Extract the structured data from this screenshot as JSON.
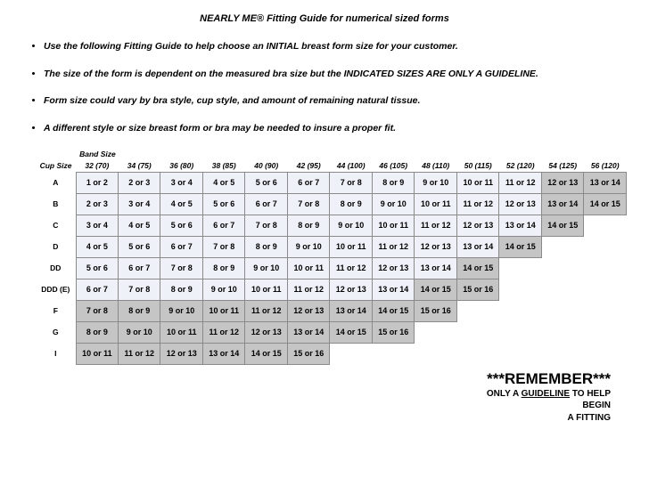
{
  "title": "NEARLY ME®  Fitting Guide for numerical sized forms",
  "notes": [
    "Use the following Fitting Guide to help choose an INITIAL breast form size for your customer.",
    "The size of the form is dependent on the measured bra size but the INDICATED SIZES ARE ONLY A GUIDELINE.",
    "Form size could vary by bra style, cup style, and amount of remaining natural tissue.",
    "A different style or size breast form or bra may be needed to insure a proper fit."
  ],
  "table": {
    "band_size_label": "Band Size",
    "cup_size_label": "Cup Size",
    "band_headers": [
      "32 (70)",
      "34 (75)",
      "36 (80)",
      "38 (85)",
      "40 (90)",
      "42 (95)",
      "44 (100)",
      "46 (105)",
      "48 (110)",
      "50 (115)",
      "52 (120)",
      "54 (125)",
      "56 (120)"
    ],
    "cup_labels": [
      "A",
      "B",
      "C",
      "D",
      "DD",
      "DDD (E)",
      "F",
      "G",
      "I"
    ],
    "cells": {
      "A": [
        {
          "v": "1 or 2",
          "s": "light"
        },
        {
          "v": "2 or 3",
          "s": "light"
        },
        {
          "v": "3 or 4",
          "s": "light"
        },
        {
          "v": "4 or 5",
          "s": "light"
        },
        {
          "v": "5 or 6",
          "s": "light"
        },
        {
          "v": "6 or 7",
          "s": "light"
        },
        {
          "v": "7 or 8",
          "s": "light"
        },
        {
          "v": "8 or 9",
          "s": "light"
        },
        {
          "v": "9 or 10",
          "s": "light"
        },
        {
          "v": "10 or 11",
          "s": "light"
        },
        {
          "v": "11 or 12",
          "s": "light"
        },
        {
          "v": "12 or 13",
          "s": "dark"
        },
        {
          "v": "13 or 14",
          "s": "dark"
        }
      ],
      "B": [
        {
          "v": "2 or 3",
          "s": "light"
        },
        {
          "v": "3 or 4",
          "s": "light"
        },
        {
          "v": "4 or 5",
          "s": "light"
        },
        {
          "v": "5 or 6",
          "s": "light"
        },
        {
          "v": "6 or 7",
          "s": "light"
        },
        {
          "v": "7 or 8",
          "s": "light"
        },
        {
          "v": "8 or 9",
          "s": "light"
        },
        {
          "v": "9 or 10",
          "s": "light"
        },
        {
          "v": "10 or 11",
          "s": "light"
        },
        {
          "v": "11 or 12",
          "s": "light"
        },
        {
          "v": "12 or 13",
          "s": "light"
        },
        {
          "v": "13 or 14",
          "s": "dark"
        },
        {
          "v": "14 or 15",
          "s": "dark"
        }
      ],
      "C": [
        {
          "v": "3 or 4",
          "s": "light"
        },
        {
          "v": "4 or 5",
          "s": "light"
        },
        {
          "v": "5 or 6",
          "s": "light"
        },
        {
          "v": "6 or 7",
          "s": "light"
        },
        {
          "v": "7 or 8",
          "s": "light"
        },
        {
          "v": "8 or 9",
          "s": "light"
        },
        {
          "v": "9 or 10",
          "s": "light"
        },
        {
          "v": "10 or 11",
          "s": "light"
        },
        {
          "v": "11 or 12",
          "s": "light"
        },
        {
          "v": "12 or 13",
          "s": "light"
        },
        {
          "v": "13 or 14",
          "s": "light"
        },
        {
          "v": "14 or 15",
          "s": "dark"
        },
        null
      ],
      "D": [
        {
          "v": "4 or 5",
          "s": "light"
        },
        {
          "v": "5 or 6",
          "s": "light"
        },
        {
          "v": "6 or 7",
          "s": "light"
        },
        {
          "v": "7 or 8",
          "s": "light"
        },
        {
          "v": "8 or 9",
          "s": "light"
        },
        {
          "v": "9 or 10",
          "s": "light"
        },
        {
          "v": "10 or 11",
          "s": "light"
        },
        {
          "v": "11 or 12",
          "s": "light"
        },
        {
          "v": "12 or 13",
          "s": "light"
        },
        {
          "v": "13 or 14",
          "s": "light"
        },
        {
          "v": "14 or 15",
          "s": "dark"
        },
        null,
        null
      ],
      "DD": [
        {
          "v": "5 or 6",
          "s": "light"
        },
        {
          "v": "6 or 7",
          "s": "light"
        },
        {
          "v": "7 or 8",
          "s": "light"
        },
        {
          "v": "8 or 9",
          "s": "light"
        },
        {
          "v": "9 or 10",
          "s": "light"
        },
        {
          "v": "10 or 11",
          "s": "light"
        },
        {
          "v": "11 or 12",
          "s": "light"
        },
        {
          "v": "12 or 13",
          "s": "light"
        },
        {
          "v": "13 or 14",
          "s": "light"
        },
        {
          "v": "14 or 15",
          "s": "dark"
        },
        null,
        null,
        null
      ],
      "DDD (E)": [
        {
          "v": "6 or 7",
          "s": "light"
        },
        {
          "v": "7 or 8",
          "s": "light"
        },
        {
          "v": "8 or 9",
          "s": "light"
        },
        {
          "v": "9 or 10",
          "s": "light"
        },
        {
          "v": "10 or 11",
          "s": "light"
        },
        {
          "v": "11 or 12",
          "s": "light"
        },
        {
          "v": "12 or 13",
          "s": "light"
        },
        {
          "v": "13 or 14",
          "s": "light"
        },
        {
          "v": "14 or 15",
          "s": "dark"
        },
        {
          "v": "15 or 16",
          "s": "dark"
        },
        null,
        null,
        null
      ],
      "F": [
        {
          "v": "7 or 8",
          "s": "dark"
        },
        {
          "v": "8 or 9",
          "s": "dark"
        },
        {
          "v": "9 or 10",
          "s": "dark"
        },
        {
          "v": "10 or 11",
          "s": "dark"
        },
        {
          "v": "11 or 12",
          "s": "dark"
        },
        {
          "v": "12 or 13",
          "s": "dark"
        },
        {
          "v": "13 or 14",
          "s": "dark"
        },
        {
          "v": "14 or 15",
          "s": "dark"
        },
        {
          "v": "15 or 16",
          "s": "dark"
        },
        null,
        null,
        null,
        null
      ],
      "G": [
        {
          "v": "8 or 9",
          "s": "dark"
        },
        {
          "v": "9 or 10",
          "s": "dark"
        },
        {
          "v": "10 or 11",
          "s": "dark"
        },
        {
          "v": "11 or 12",
          "s": "dark"
        },
        {
          "v": "12 or 13",
          "s": "dark"
        },
        {
          "v": "13 or 14",
          "s": "dark"
        },
        {
          "v": "14 or 15",
          "s": "dark"
        },
        {
          "v": "15 or 16",
          "s": "dark"
        },
        null,
        null,
        null,
        null,
        null
      ],
      "I": [
        {
          "v": "10 or 11",
          "s": "dark"
        },
        {
          "v": "11 or 12",
          "s": "dark"
        },
        {
          "v": "12 or 13",
          "s": "dark"
        },
        {
          "v": "13 or 14",
          "s": "dark"
        },
        {
          "v": "14 or 15",
          "s": "dark"
        },
        {
          "v": "15 or 16",
          "s": "dark"
        },
        null,
        null,
        null,
        null,
        null,
        null,
        null
      ]
    }
  },
  "remember": {
    "heading": "***REMEMBER***",
    "line1_pre": "ONLY A ",
    "line1_mid": "GUIDELINE",
    "line1_post": " TO HELP",
    "line2": "BEGIN",
    "line3": "A FITTING"
  }
}
